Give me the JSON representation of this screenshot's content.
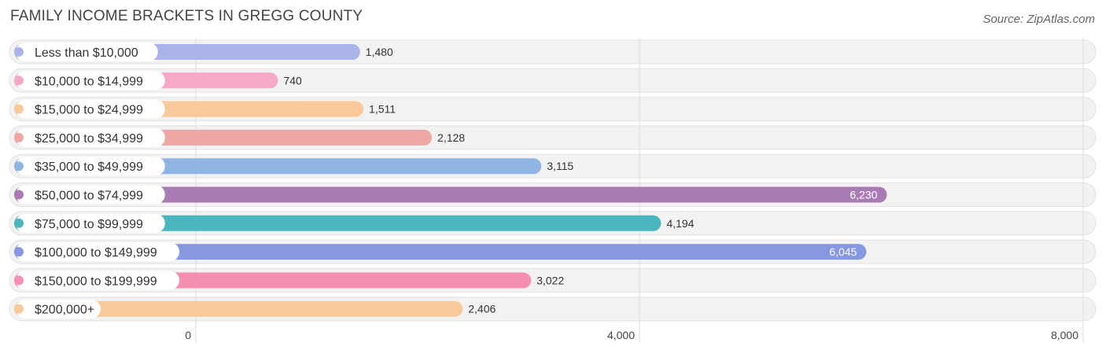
{
  "title": "FAMILY INCOME BRACKETS IN GREGG COUNTY",
  "source": "Source: ZipAtlas.com",
  "chart_data": {
    "type": "bar",
    "orientation": "horizontal",
    "title": "FAMILY INCOME BRACKETS IN GREGG COUNTY",
    "categories": [
      "Less than $10,000",
      "$10,000 to $14,999",
      "$15,000 to $24,999",
      "$25,000 to $34,999",
      "$35,000 to $49,999",
      "$50,000 to $74,999",
      "$75,000 to $99,999",
      "$100,000 to $149,999",
      "$150,000 to $199,999",
      "$200,000+"
    ],
    "values": [
      1480,
      740,
      1511,
      2128,
      3115,
      6230,
      4194,
      6045,
      3022,
      2406
    ],
    "value_labels": [
      "1,480",
      "740",
      "1,511",
      "2,128",
      "3,115",
      "6,230",
      "4,194",
      "6,045",
      "3,022",
      "2,406"
    ],
    "colors": [
      "#aab4ea",
      "#f7a8c8",
      "#f9c99b",
      "#eea7a2",
      "#8fb5e4",
      "#a97bb5",
      "#4cb6bf",
      "#8797e0",
      "#f48fb1",
      "#f9c99b"
    ],
    "xlim": [
      0,
      8000
    ],
    "xticks": [
      0,
      4000,
      8000
    ],
    "xtick_labels": [
      "0",
      "4,000",
      "8,000"
    ],
    "grid": true
  }
}
